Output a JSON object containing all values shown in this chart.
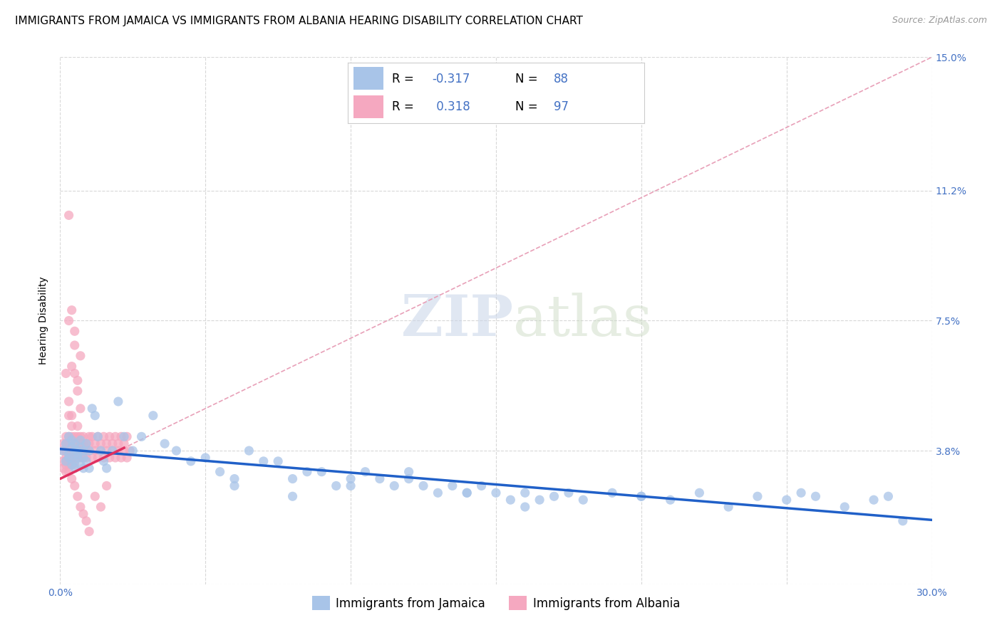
{
  "title": "IMMIGRANTS FROM JAMAICA VS IMMIGRANTS FROM ALBANIA HEARING DISABILITY CORRELATION CHART",
  "source": "Source: ZipAtlas.com",
  "ylabel": "Hearing Disability",
  "xlim": [
    0.0,
    0.3
  ],
  "ylim": [
    0.0,
    0.15
  ],
  "jamaica_R": -0.317,
  "jamaica_N": 88,
  "albania_R": 0.318,
  "albania_N": 97,
  "jamaica_color": "#a8c4e8",
  "albania_color": "#f5a8c0",
  "jamaica_line_color": "#2060c8",
  "albania_line_color": "#e03060",
  "albania_dashed_color": "#e8a0b8",
  "background_color": "#ffffff",
  "grid_color": "#d8d8d8",
  "title_fontsize": 11,
  "axis_label_fontsize": 10,
  "tick_fontsize": 10,
  "legend_fontsize": 12,
  "jamaica_x": [
    0.001,
    0.002,
    0.002,
    0.003,
    0.003,
    0.003,
    0.004,
    0.004,
    0.004,
    0.005,
    0.005,
    0.005,
    0.005,
    0.006,
    0.006,
    0.006,
    0.007,
    0.007,
    0.007,
    0.008,
    0.008,
    0.008,
    0.009,
    0.009,
    0.01,
    0.01,
    0.011,
    0.012,
    0.013,
    0.014,
    0.015,
    0.016,
    0.018,
    0.02,
    0.022,
    0.025,
    0.028,
    0.032,
    0.036,
    0.04,
    0.045,
    0.05,
    0.055,
    0.06,
    0.065,
    0.07,
    0.075,
    0.08,
    0.085,
    0.09,
    0.095,
    0.1,
    0.105,
    0.11,
    0.115,
    0.12,
    0.125,
    0.13,
    0.135,
    0.14,
    0.145,
    0.15,
    0.155,
    0.16,
    0.165,
    0.17,
    0.175,
    0.18,
    0.19,
    0.2,
    0.21,
    0.22,
    0.23,
    0.24,
    0.25,
    0.255,
    0.26,
    0.27,
    0.28,
    0.285,
    0.06,
    0.08,
    0.1,
    0.12,
    0.14,
    0.16,
    0.2,
    0.29
  ],
  "jamaica_y": [
    0.038,
    0.04,
    0.035,
    0.042,
    0.037,
    0.036,
    0.041,
    0.039,
    0.034,
    0.038,
    0.04,
    0.035,
    0.033,
    0.038,
    0.037,
    0.036,
    0.041,
    0.039,
    0.034,
    0.036,
    0.038,
    0.033,
    0.04,
    0.035,
    0.038,
    0.033,
    0.05,
    0.048,
    0.042,
    0.038,
    0.035,
    0.033,
    0.038,
    0.052,
    0.042,
    0.038,
    0.042,
    0.048,
    0.04,
    0.038,
    0.035,
    0.036,
    0.032,
    0.03,
    0.038,
    0.035,
    0.035,
    0.03,
    0.032,
    0.032,
    0.028,
    0.03,
    0.032,
    0.03,
    0.028,
    0.032,
    0.028,
    0.026,
    0.028,
    0.026,
    0.028,
    0.026,
    0.024,
    0.026,
    0.024,
    0.025,
    0.026,
    0.024,
    0.026,
    0.025,
    0.024,
    0.026,
    0.022,
    0.025,
    0.024,
    0.026,
    0.025,
    0.022,
    0.024,
    0.025,
    0.028,
    0.025,
    0.028,
    0.03,
    0.026,
    0.022,
    0.025,
    0.018
  ],
  "albania_x": [
    0.001,
    0.001,
    0.001,
    0.002,
    0.002,
    0.002,
    0.002,
    0.002,
    0.003,
    0.003,
    0.003,
    0.003,
    0.003,
    0.004,
    0.004,
    0.004,
    0.004,
    0.005,
    0.005,
    0.005,
    0.005,
    0.005,
    0.006,
    0.006,
    0.006,
    0.006,
    0.007,
    0.007,
    0.007,
    0.007,
    0.008,
    0.008,
    0.008,
    0.009,
    0.009,
    0.009,
    0.01,
    0.01,
    0.01,
    0.011,
    0.011,
    0.012,
    0.012,
    0.013,
    0.013,
    0.014,
    0.014,
    0.015,
    0.015,
    0.016,
    0.016,
    0.017,
    0.017,
    0.018,
    0.018,
    0.019,
    0.019,
    0.02,
    0.02,
    0.021,
    0.021,
    0.022,
    0.022,
    0.023,
    0.023,
    0.024,
    0.001,
    0.002,
    0.003,
    0.004,
    0.005,
    0.006,
    0.007,
    0.003,
    0.004,
    0.005,
    0.006,
    0.007,
    0.002,
    0.003,
    0.004,
    0.005,
    0.006,
    0.003,
    0.004,
    0.002,
    0.003,
    0.004,
    0.005,
    0.006,
    0.007,
    0.008,
    0.009,
    0.01,
    0.012,
    0.014,
    0.016
  ],
  "albania_y": [
    0.038,
    0.035,
    0.04,
    0.036,
    0.042,
    0.038,
    0.034,
    0.04,
    0.036,
    0.042,
    0.038,
    0.034,
    0.04,
    0.036,
    0.042,
    0.038,
    0.034,
    0.04,
    0.036,
    0.042,
    0.038,
    0.034,
    0.04,
    0.036,
    0.042,
    0.038,
    0.04,
    0.036,
    0.042,
    0.038,
    0.04,
    0.036,
    0.042,
    0.038,
    0.04,
    0.036,
    0.042,
    0.038,
    0.04,
    0.036,
    0.042,
    0.038,
    0.04,
    0.036,
    0.042,
    0.038,
    0.04,
    0.036,
    0.042,
    0.038,
    0.04,
    0.036,
    0.042,
    0.038,
    0.04,
    0.036,
    0.042,
    0.038,
    0.04,
    0.036,
    0.042,
    0.038,
    0.04,
    0.036,
    0.042,
    0.038,
    0.033,
    0.032,
    0.048,
    0.045,
    0.06,
    0.055,
    0.065,
    0.105,
    0.078,
    0.068,
    0.058,
    0.05,
    0.06,
    0.052,
    0.048,
    0.072,
    0.045,
    0.075,
    0.062,
    0.035,
    0.032,
    0.03,
    0.028,
    0.025,
    0.022,
    0.02,
    0.018,
    0.015,
    0.025,
    0.022,
    0.028
  ]
}
